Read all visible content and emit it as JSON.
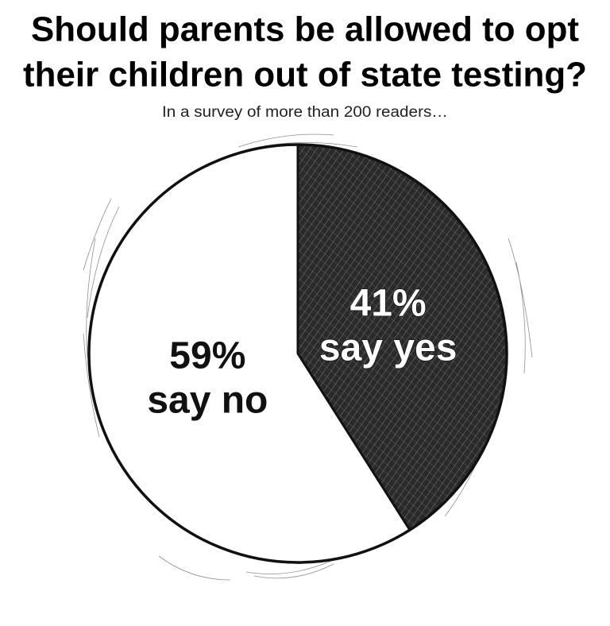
{
  "chart_data": {
    "type": "pie",
    "title": [
      "Should parents be allowed to opt",
      "their children out of state testing?"
    ],
    "subtitle": "In a survey of more than 200 readers…",
    "categories": [
      "say no",
      "say yes"
    ],
    "values": [
      59,
      41
    ],
    "value_labels": [
      "59%",
      "41%"
    ],
    "colors": [
      "#ffffff",
      "#2a2a2a"
    ],
    "start": "top",
    "direction": "counterclockwise-from-yes"
  }
}
